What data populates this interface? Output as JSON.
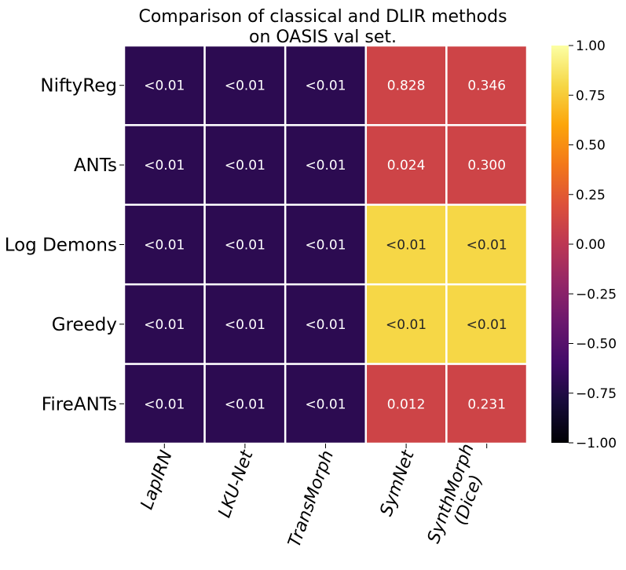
{
  "chart_data": {
    "type": "heatmap",
    "title": [
      "Comparison of classical and DLIR methods",
      "on OASIS val set."
    ],
    "rows": [
      "NiftyReg",
      "ANTs",
      "Log Demons",
      "Greedy",
      "FireANTs"
    ],
    "columns": [
      "LapIRN",
      "LKU-Net",
      "TransMorph",
      "SymNet",
      "SynthMorph\n(Dice)"
    ],
    "values": [
      [
        -0.7,
        -0.7,
        -0.7,
        0.1,
        0.1
      ],
      [
        -0.7,
        -0.7,
        -0.7,
        0.1,
        0.1
      ],
      [
        -0.7,
        -0.7,
        -0.7,
        0.8,
        0.8
      ],
      [
        -0.7,
        -0.7,
        -0.7,
        0.8,
        0.8
      ],
      [
        -0.7,
        -0.7,
        -0.7,
        0.1,
        0.1
      ]
    ],
    "annotations": [
      [
        "<0.01",
        "<0.01",
        "<0.01",
        "0.828",
        "0.346"
      ],
      [
        "<0.01",
        "<0.01",
        "<0.01",
        "0.024",
        "0.300"
      ],
      [
        "<0.01",
        "<0.01",
        "<0.01",
        "<0.01",
        "<0.01"
      ],
      [
        "<0.01",
        "<0.01",
        "<0.01",
        "<0.01",
        "<0.01"
      ],
      [
        "<0.01",
        "<0.01",
        "<0.01",
        "0.012",
        "0.231"
      ]
    ],
    "colormap": "inferno",
    "vmin": -1.0,
    "vmax": 1.0,
    "colorbar_ticks": [
      "1.00",
      "0.75",
      "0.50",
      "0.25",
      "0.00",
      "−0.25",
      "−0.50",
      "−0.75",
      "−1.00"
    ],
    "xlabel": "",
    "ylabel": ""
  }
}
